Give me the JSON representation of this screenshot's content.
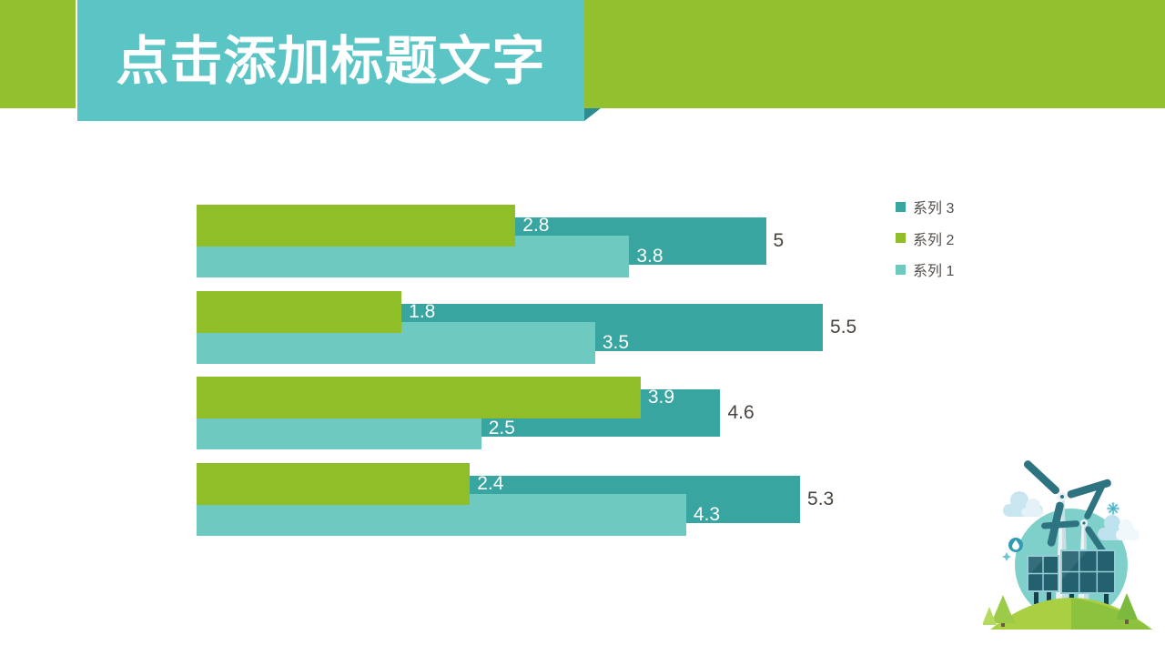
{
  "slide": {
    "background": "#FFFFFF"
  },
  "header": {
    "band_color": "#92C02E",
    "title_box_color": "#5BC4C4",
    "fold_color": "#2C8C92"
  },
  "title": {
    "text": "点击添加标题文字",
    "color": "#FFFFFF"
  },
  "chart_data": {
    "type": "bar",
    "orientation": "horizontal",
    "title": "",
    "xlabel": "",
    "ylabel": "",
    "xlim": [
      0,
      6
    ],
    "grid": false,
    "categories": [
      "",
      "",
      "",
      ""
    ],
    "series": [
      {
        "name": "系列 1",
        "color": "#6EC9C0",
        "label_color": "#FFFFFF",
        "values": [
          3.8,
          3.5,
          2.5,
          4.3
        ]
      },
      {
        "name": "系列 2",
        "color": "#8FBE28",
        "label_color": "#FFFFFF",
        "values": [
          2.8,
          1.8,
          3.9,
          2.4
        ]
      },
      {
        "name": "系列 3",
        "color": "#38A5A1",
        "label_color": "#4A433D",
        "values": [
          5,
          5.5,
          4.6,
          5.3
        ]
      }
    ],
    "legend": {
      "position": "right",
      "text_color": "#544E49",
      "items": [
        {
          "label": "系列 3",
          "color": "#38A5A1"
        },
        {
          "label": "系列 2",
          "color": "#8FBE28"
        },
        {
          "label": "系列 1",
          "color": "#6EC9C0"
        }
      ]
    }
  }
}
